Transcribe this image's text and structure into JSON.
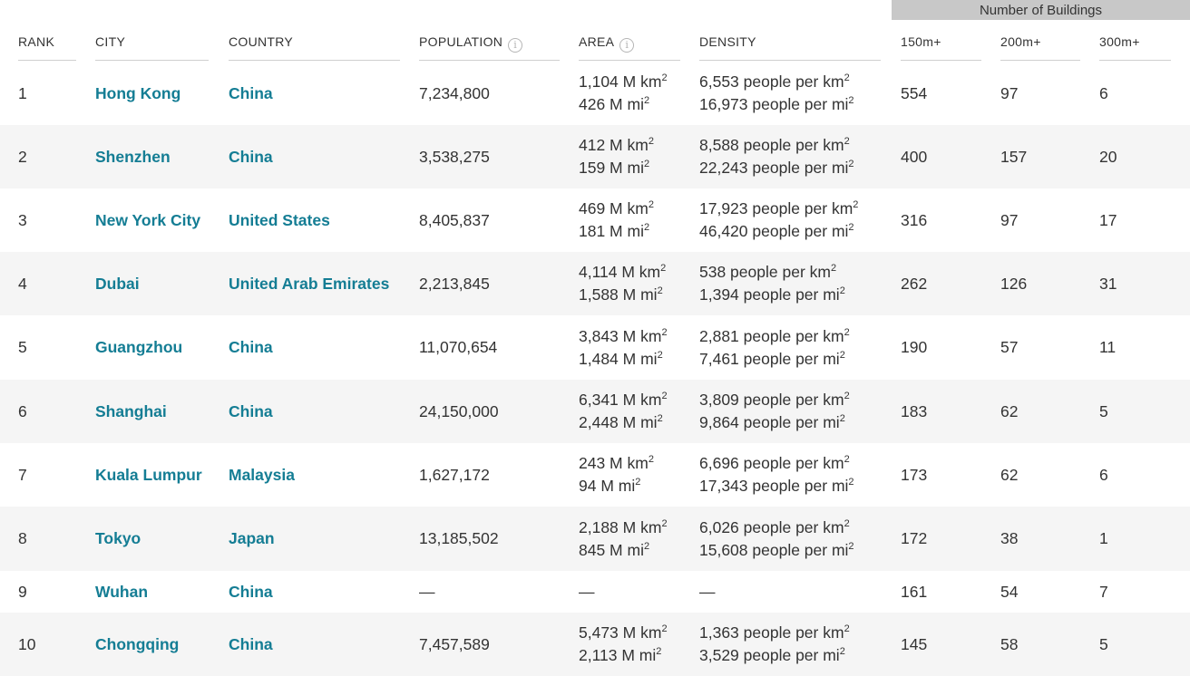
{
  "group_header": "Number of Buildings",
  "headers": {
    "rank": "RANK",
    "city": "CITY",
    "country": "COUNTRY",
    "population": "POPULATION",
    "area": "AREA",
    "density": "DENSITY",
    "b150": "150m+",
    "b200": "200m+",
    "b300": "300m+"
  },
  "rows": [
    {
      "rank": "1",
      "city": "Hong Kong",
      "country": "China",
      "population": "7,234,800",
      "area_km": "1,104 M km",
      "area_mi": "426 M mi",
      "density_km": "6,553 people per km",
      "density_mi": "16,973 people per mi",
      "b150": "554",
      "b200": "97",
      "b300": "6"
    },
    {
      "rank": "2",
      "city": "Shenzhen",
      "country": "China",
      "population": "3,538,275",
      "area_km": "412 M km",
      "area_mi": "159 M mi",
      "density_km": "8,588 people per km",
      "density_mi": "22,243 people per mi",
      "b150": "400",
      "b200": "157",
      "b300": "20"
    },
    {
      "rank": "3",
      "city": "New York City",
      "country": "United States",
      "population": "8,405,837",
      "area_km": "469 M km",
      "area_mi": "181 M mi",
      "density_km": "17,923 people per km",
      "density_mi": "46,420 people per mi",
      "b150": "316",
      "b200": "97",
      "b300": "17"
    },
    {
      "rank": "4",
      "city": "Dubai",
      "country": "United Arab Emirates",
      "population": "2,213,845",
      "area_km": "4,114 M km",
      "area_mi": "1,588 M mi",
      "density_km": "538 people per km",
      "density_mi": "1,394 people per mi",
      "b150": "262",
      "b200": "126",
      "b300": "31"
    },
    {
      "rank": "5",
      "city": "Guangzhou",
      "country": "China",
      "population": "11,070,654",
      "area_km": "3,843 M km",
      "area_mi": "1,484 M mi",
      "density_km": "2,881 people per km",
      "density_mi": "7,461 people per mi",
      "b150": "190",
      "b200": "57",
      "b300": "11"
    },
    {
      "rank": "6",
      "city": "Shanghai",
      "country": "China",
      "population": "24,150,000",
      "area_km": "6,341 M km",
      "area_mi": "2,448 M mi",
      "density_km": "3,809 people per km",
      "density_mi": "9,864 people per mi",
      "b150": "183",
      "b200": "62",
      "b300": "5"
    },
    {
      "rank": "7",
      "city": "Kuala Lumpur",
      "country": "Malaysia",
      "population": "1,627,172",
      "area_km": "243 M km",
      "area_mi": "94 M mi",
      "density_km": "6,696 people per km",
      "density_mi": "17,343 people per mi",
      "b150": "173",
      "b200": "62",
      "b300": "6"
    },
    {
      "rank": "8",
      "city": "Tokyo",
      "country": "Japan",
      "population": "13,185,502",
      "area_km": "2,188 M km",
      "area_mi": "845 M mi",
      "density_km": "6,026 people per km",
      "density_mi": "15,608 people per mi",
      "b150": "172",
      "b200": "38",
      "b300": "1"
    },
    {
      "rank": "9",
      "city": "Wuhan",
      "country": "China",
      "population": "—",
      "area_km": "—",
      "area_mi": "",
      "density_km": "—",
      "density_mi": "",
      "b150": "161",
      "b200": "54",
      "b300": "7"
    },
    {
      "rank": "10",
      "city": "Chongqing",
      "country": "China",
      "population": "7,457,589",
      "area_km": "5,473 M km",
      "area_mi": "2,113 M mi",
      "density_km": "1,363 people per km",
      "density_mi": "3,529 people per mi",
      "b150": "145",
      "b200": "58",
      "b300": "5"
    }
  ]
}
